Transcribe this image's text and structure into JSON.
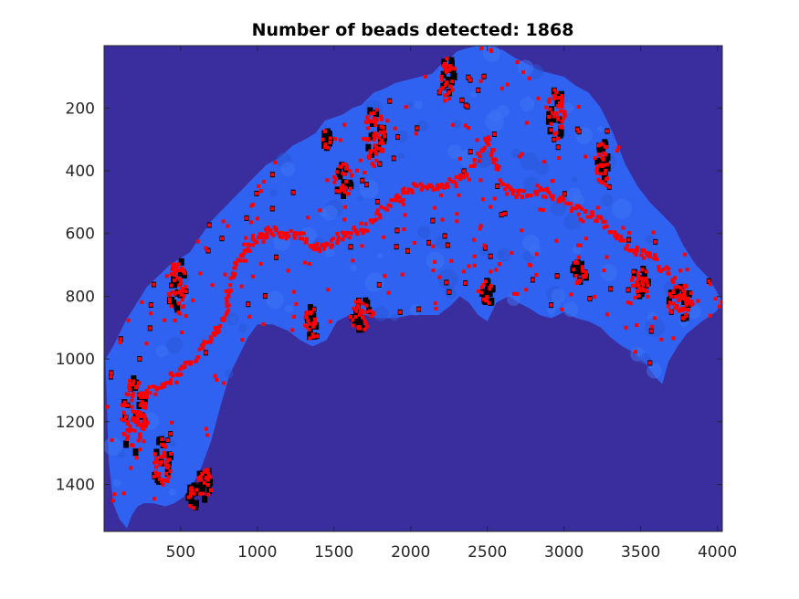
{
  "chart_data": {
    "type": "scatter",
    "title": "Number of beads detected: 1868",
    "xlabel": "",
    "ylabel": "",
    "xlim": [
      1,
      4032
    ],
    "ylim": [
      1,
      1550
    ],
    "y_reversed": true,
    "grid": false,
    "legend": "none",
    "x_ticks": [
      500,
      1000,
      1500,
      2000,
      2500,
      3000,
      3500,
      4000
    ],
    "y_ticks": [
      200,
      400,
      600,
      800,
      1000,
      1200,
      1400
    ],
    "colors": {
      "background": "#3a2e9e",
      "tissue": "#2f62f0",
      "beads": "#ff0000",
      "dark_spots": "#000000"
    },
    "tissue_outline": {
      "x": [
        10,
        60,
        140,
        280,
        430,
        560,
        600,
        700,
        860,
        940,
        980,
        1060,
        1140,
        1230,
        1310,
        1380,
        1440,
        1500,
        1560,
        1620,
        1680,
        1720,
        1760,
        1820,
        1900,
        1980,
        2060,
        2140,
        2200,
        2260,
        2300,
        2360,
        2440,
        2500,
        2600,
        2680,
        2760,
        2840,
        2920,
        3000,
        3080,
        3160,
        3240,
        3320,
        3400,
        3480,
        3560,
        3640,
        3720,
        3780,
        3860,
        3940,
        3990,
        4032,
        3990,
        3900,
        3800,
        3740,
        3680,
        3640,
        3600,
        3540,
        3460,
        3380,
        3300,
        3240,
        3160,
        3080,
        3000,
        2920,
        2840,
        2780,
        2700,
        2640,
        2560,
        2500,
        2440,
        2380,
        2320,
        2260,
        2180,
        2100,
        2000,
        1900,
        1800,
        1700,
        1600,
        1520,
        1450,
        1360,
        1280,
        1200,
        1100,
        1000,
        940,
        880,
        820,
        760,
        700,
        640,
        580,
        520,
        460,
        400,
        320,
        260,
        220,
        180,
        150,
        100,
        60,
        30,
        10
      ],
      "y": [
        1000,
        960,
        880,
        770,
        700,
        660,
        630,
        560,
        480,
        440,
        420,
        380,
        360,
        320,
        300,
        280,
        240,
        230,
        220,
        200,
        190,
        170,
        150,
        140,
        120,
        110,
        100,
        90,
        60,
        40,
        20,
        10,
        1,
        1,
        15,
        40,
        60,
        80,
        90,
        100,
        130,
        150,
        200,
        280,
        380,
        450,
        500,
        540,
        580,
        640,
        700,
        740,
        780,
        820,
        850,
        880,
        920,
        960,
        1010,
        1080,
        1060,
        1020,
        980,
        960,
        930,
        900,
        880,
        870,
        850,
        870,
        860,
        840,
        820,
        800,
        820,
        880,
        860,
        820,
        800,
        830,
        860,
        860,
        860,
        870,
        870,
        860,
        860,
        880,
        940,
        960,
        940,
        910,
        890,
        890,
        930,
        990,
        1050,
        1150,
        1260,
        1340,
        1400,
        1440,
        1460,
        1470,
        1460,
        1460,
        1470,
        1500,
        1540,
        1510,
        1460,
        1320,
        1000
      ]
    },
    "bead_path": {
      "x": [
        250,
        300,
        380,
        430,
        480,
        540,
        600,
        650,
        700,
        740,
        780,
        800,
        820,
        850,
        880,
        920,
        960,
        1000,
        1050,
        1100,
        1150,
        1200,
        1250,
        1300,
        1350,
        1400,
        1450,
        1500,
        1550,
        1600,
        1650,
        1700,
        1760,
        1820,
        1880,
        1940,
        2000,
        2060,
        2120,
        2180,
        2240,
        2300,
        2360,
        2420,
        2470,
        2500,
        2530,
        2560,
        2600,
        2650,
        2700,
        2760,
        2820,
        2880,
        2940,
        3000,
        3060,
        3120,
        3180,
        3240,
        3300,
        3360,
        3420,
        3480,
        3540,
        3600,
        3660,
        3720,
        3780,
        3840
      ],
      "y": [
        1130,
        1100,
        1080,
        1060,
        1040,
        1020,
        990,
        960,
        930,
        900,
        870,
        830,
        780,
        720,
        690,
        660,
        640,
        610,
        600,
        590,
        600,
        610,
        600,
        610,
        640,
        650,
        640,
        620,
        610,
        600,
        590,
        580,
        560,
        530,
        500,
        480,
        460,
        450,
        460,
        450,
        440,
        430,
        420,
        380,
        330,
        300,
        330,
        380,
        440,
        470,
        480,
        470,
        460,
        470,
        480,
        500,
        520,
        530,
        540,
        560,
        590,
        620,
        640,
        660,
        670,
        690,
        720,
        760,
        800,
        830
      ]
    },
    "bead_clusters": [
      {
        "x": 200,
        "y": 1180,
        "rx": 90,
        "ry": 120
      },
      {
        "x": 480,
        "y": 770,
        "rx": 60,
        "ry": 90
      },
      {
        "x": 380,
        "y": 1330,
        "rx": 60,
        "ry": 80
      },
      {
        "x": 660,
        "y": 1400,
        "rx": 50,
        "ry": 50
      },
      {
        "x": 580,
        "y": 1440,
        "rx": 30,
        "ry": 40
      },
      {
        "x": 1760,
        "y": 290,
        "rx": 70,
        "ry": 90
      },
      {
        "x": 1560,
        "y": 430,
        "rx": 60,
        "ry": 60
      },
      {
        "x": 1450,
        "y": 300,
        "rx": 30,
        "ry": 30
      },
      {
        "x": 2250,
        "y": 100,
        "rx": 50,
        "ry": 60
      },
      {
        "x": 2950,
        "y": 220,
        "rx": 60,
        "ry": 80
      },
      {
        "x": 3250,
        "y": 380,
        "rx": 40,
        "ry": 80
      },
      {
        "x": 1680,
        "y": 860,
        "rx": 80,
        "ry": 50
      },
      {
        "x": 2500,
        "y": 790,
        "rx": 40,
        "ry": 40
      },
      {
        "x": 3500,
        "y": 760,
        "rx": 60,
        "ry": 60
      },
      {
        "x": 3760,
        "y": 820,
        "rx": 80,
        "ry": 60
      },
      {
        "x": 1350,
        "y": 880,
        "rx": 40,
        "ry": 60
      },
      {
        "x": 3100,
        "y": 720,
        "rx": 50,
        "ry": 40
      }
    ],
    "scattered_bead_count": 320
  }
}
